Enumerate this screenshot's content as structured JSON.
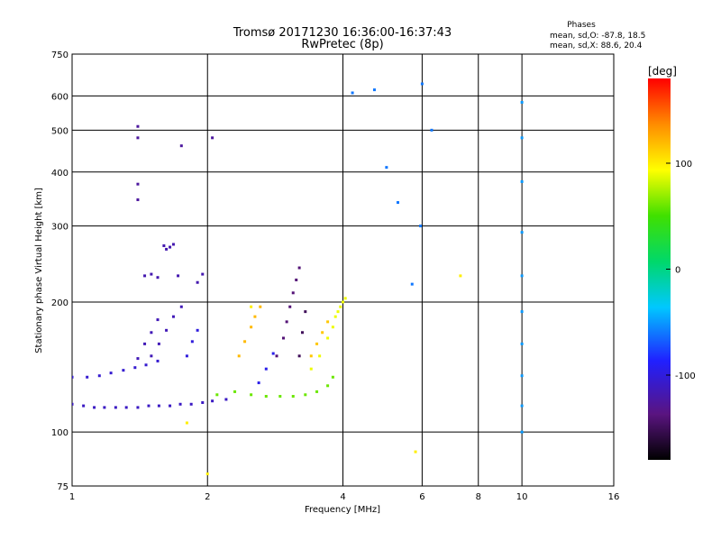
{
  "chart_data": {
    "type": "scatter",
    "title": "Tromsø 20171230 16:36:00-16:37:43",
    "subtitle": "RwPretec (8p)",
    "xlabel": "Frequency [MHz]",
    "ylabel": "Stationary phase Virtual Height [km]",
    "x_scale": "log",
    "y_scale": "log",
    "xlim": [
      1,
      16
    ],
    "ylim": [
      75,
      750
    ],
    "x_ticks": [
      1,
      2,
      4,
      6,
      8,
      10,
      16
    ],
    "y_ticks": [
      75,
      100,
      200,
      300,
      400,
      500,
      600,
      750
    ],
    "grid": true,
    "stats": {
      "heading": "Phases",
      "line_o": "mean, sd,O: -87.8, 18.5",
      "line_x": "mean, sd,X:  88.6, 20.4"
    },
    "colorbar": {
      "label": "[deg]",
      "range": [
        -180,
        180
      ],
      "tick_values": [
        100,
        0,
        -100
      ],
      "tick_labels": [
        "100",
        "0",
        "-100"
      ]
    },
    "series": [
      {
        "x": [
          1.0,
          1.06,
          1.12,
          1.18,
          1.25,
          1.32,
          1.4,
          1.48,
          1.56,
          1.65,
          1.74,
          1.84,
          1.95,
          2.05,
          2.2
        ],
        "y": [
          116,
          115,
          114,
          114,
          114,
          114,
          114,
          115,
          115,
          115,
          116,
          116,
          117,
          118,
          119
        ],
        "phase": -110
      },
      {
        "x": [
          1.0,
          1.08,
          1.15,
          1.22,
          1.3,
          1.38,
          1.46,
          1.55
        ],
        "y": [
          134,
          134,
          135,
          137,
          139,
          141,
          143,
          146
        ],
        "phase": -105
      },
      {
        "x": [
          1.5,
          1.56,
          1.62,
          1.68,
          1.75
        ],
        "y": [
          150,
          160,
          172,
          185,
          195
        ],
        "phase": -115
      },
      {
        "x": [
          1.4,
          1.45,
          1.5,
          1.55
        ],
        "y": [
          148,
          160,
          170,
          182
        ],
        "phase": -115
      },
      {
        "x": [
          1.8,
          1.85,
          1.9
        ],
        "y": [
          150,
          162,
          172
        ],
        "phase": -100
      },
      {
        "x": [
          1.45,
          1.5,
          1.55,
          1.6,
          1.62,
          1.65,
          1.68,
          1.72,
          1.9,
          1.95
        ],
        "y": [
          230,
          232,
          228,
          270,
          265,
          268,
          272,
          230,
          222,
          232
        ],
        "phase": -118
      },
      {
        "x": [
          1.4,
          1.4,
          1.4,
          1.4,
          1.75,
          2.05
        ],
        "y": [
          510,
          480,
          375,
          345,
          460,
          480
        ],
        "phase": -125
      },
      {
        "x": [
          2.1,
          2.3,
          2.5,
          2.7,
          2.9,
          3.1,
          3.3,
          3.5,
          3.7,
          3.8
        ],
        "y": [
          122,
          124,
          122,
          121,
          121,
          121,
          122,
          124,
          128,
          134
        ],
        "phase": 60
      },
      {
        "x": [
          3.4,
          3.55,
          3.7,
          3.8,
          3.85,
          3.9,
          3.95,
          4.0,
          4.05
        ],
        "y": [
          140,
          150,
          165,
          175,
          185,
          190,
          195,
          200,
          204
        ],
        "phase": 90
      },
      {
        "x": [
          2.35,
          2.42,
          2.5,
          2.55,
          2.62
        ],
        "y": [
          150,
          162,
          175,
          185,
          195
        ],
        "phase": 120
      },
      {
        "x": [
          3.4,
          3.5,
          3.6,
          3.7
        ],
        "y": [
          150,
          160,
          170,
          180
        ],
        "phase": 115
      },
      {
        "x": [
          2.85,
          2.95,
          3.0,
          3.05,
          3.1,
          3.15,
          3.2
        ],
        "y": [
          150,
          165,
          180,
          195,
          210,
          225,
          240
        ],
        "phase": -140
      },
      {
        "x": [
          3.2,
          3.25,
          3.3
        ],
        "y": [
          150,
          170,
          190
        ],
        "phase": -150
      },
      {
        "x": [
          2.6,
          2.7,
          2.8
        ],
        "y": [
          130,
          140,
          152
        ],
        "phase": -95
      },
      {
        "x": [
          10,
          10,
          10,
          10,
          10,
          10,
          10,
          10,
          10,
          10
        ],
        "y": [
          100,
          115,
          135,
          160,
          190,
          230,
          290,
          380,
          480,
          580
        ],
        "phase": -50
      },
      {
        "x": [
          4.2,
          4.7,
          5.0,
          5.3,
          5.7,
          5.95,
          6.0,
          6.3
        ],
        "y": [
          610,
          620,
          410,
          340,
          220,
          300,
          640,
          500
        ],
        "phase": -60
      },
      {
        "x": [
          1.8,
          2.0,
          2.5,
          5.8,
          7.3
        ],
        "y": [
          105,
          80,
          195,
          90,
          230
        ],
        "phase": 100
      }
    ]
  }
}
